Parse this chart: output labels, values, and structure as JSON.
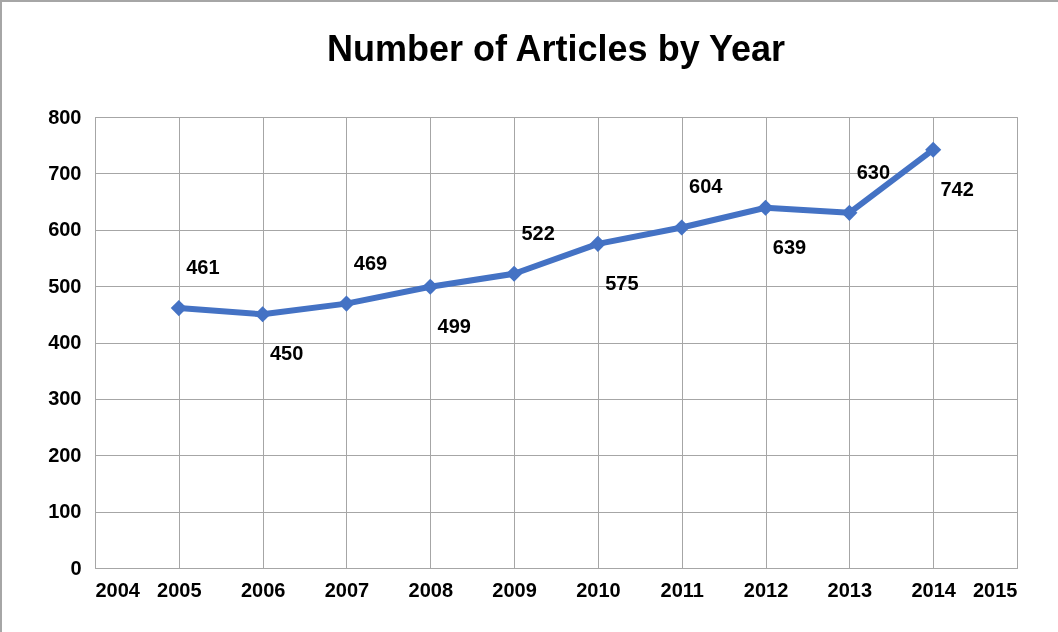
{
  "chart_data": {
    "type": "line",
    "title": "Number of Articles by Year",
    "x": [
      2005,
      2006,
      2007,
      2008,
      2009,
      2010,
      2011,
      2012,
      2013,
      2014
    ],
    "series": [
      {
        "color": "#4472c4",
        "values": [
          461,
          450,
          469,
          499,
          522,
          575,
          604,
          639,
          630,
          742
        ]
      }
    ],
    "xlim": [
      2004,
      2015
    ],
    "xticks": [
      2004,
      2005,
      2006,
      2007,
      2008,
      2009,
      2010,
      2011,
      2012,
      2013,
      2014,
      2015
    ],
    "ylim": [
      0,
      800
    ],
    "yticks": [
      0,
      100,
      200,
      300,
      400,
      500,
      600,
      700,
      800
    ],
    "grid": true,
    "data_labels": true,
    "marker": "diamond",
    "line_style": "solid"
  }
}
